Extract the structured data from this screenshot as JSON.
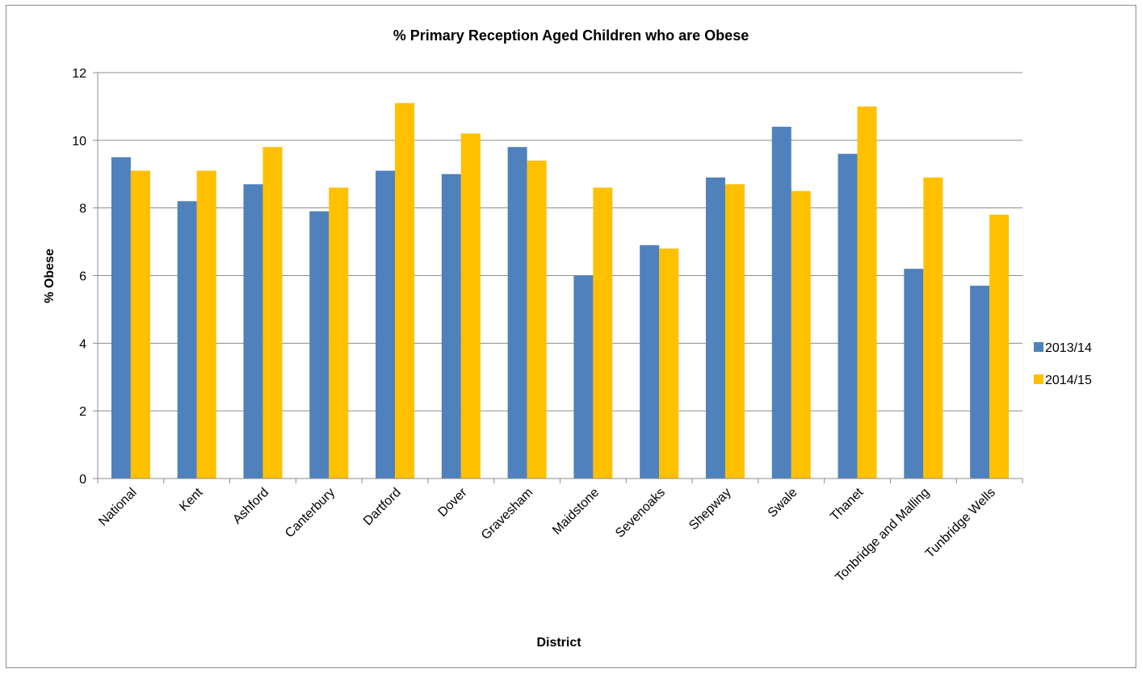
{
  "chart_data": {
    "type": "bar",
    "title": "% Primary Reception Aged Children who are Obese",
    "xlabel": "District",
    "ylabel": "% Obese",
    "ylim": [
      0,
      12
    ],
    "yticks": [
      0,
      2,
      4,
      6,
      8,
      10,
      12
    ],
    "grid": true,
    "legend_position": "right",
    "categories": [
      "National",
      "Kent",
      "Ashford",
      "Canterbury",
      "Dartford",
      "Dover",
      "Gravesham",
      "Maidstone",
      "Sevenoaks",
      "Shepway",
      "Swale",
      "Thanet",
      "Tonbridge and Malling",
      "Tunbridge Wells"
    ],
    "series": [
      {
        "name": "2013/14",
        "color": "#4F81BD",
        "values": [
          9.5,
          8.2,
          8.7,
          7.9,
          9.1,
          9.0,
          9.8,
          6.0,
          6.9,
          8.9,
          10.4,
          9.6,
          6.2,
          5.7
        ]
      },
      {
        "name": "2014/15",
        "color": "#FFC000",
        "values": [
          9.1,
          9.1,
          9.8,
          8.6,
          11.1,
          10.2,
          9.4,
          8.6,
          6.8,
          8.7,
          8.5,
          11.0,
          8.9,
          7.8
        ]
      }
    ]
  }
}
